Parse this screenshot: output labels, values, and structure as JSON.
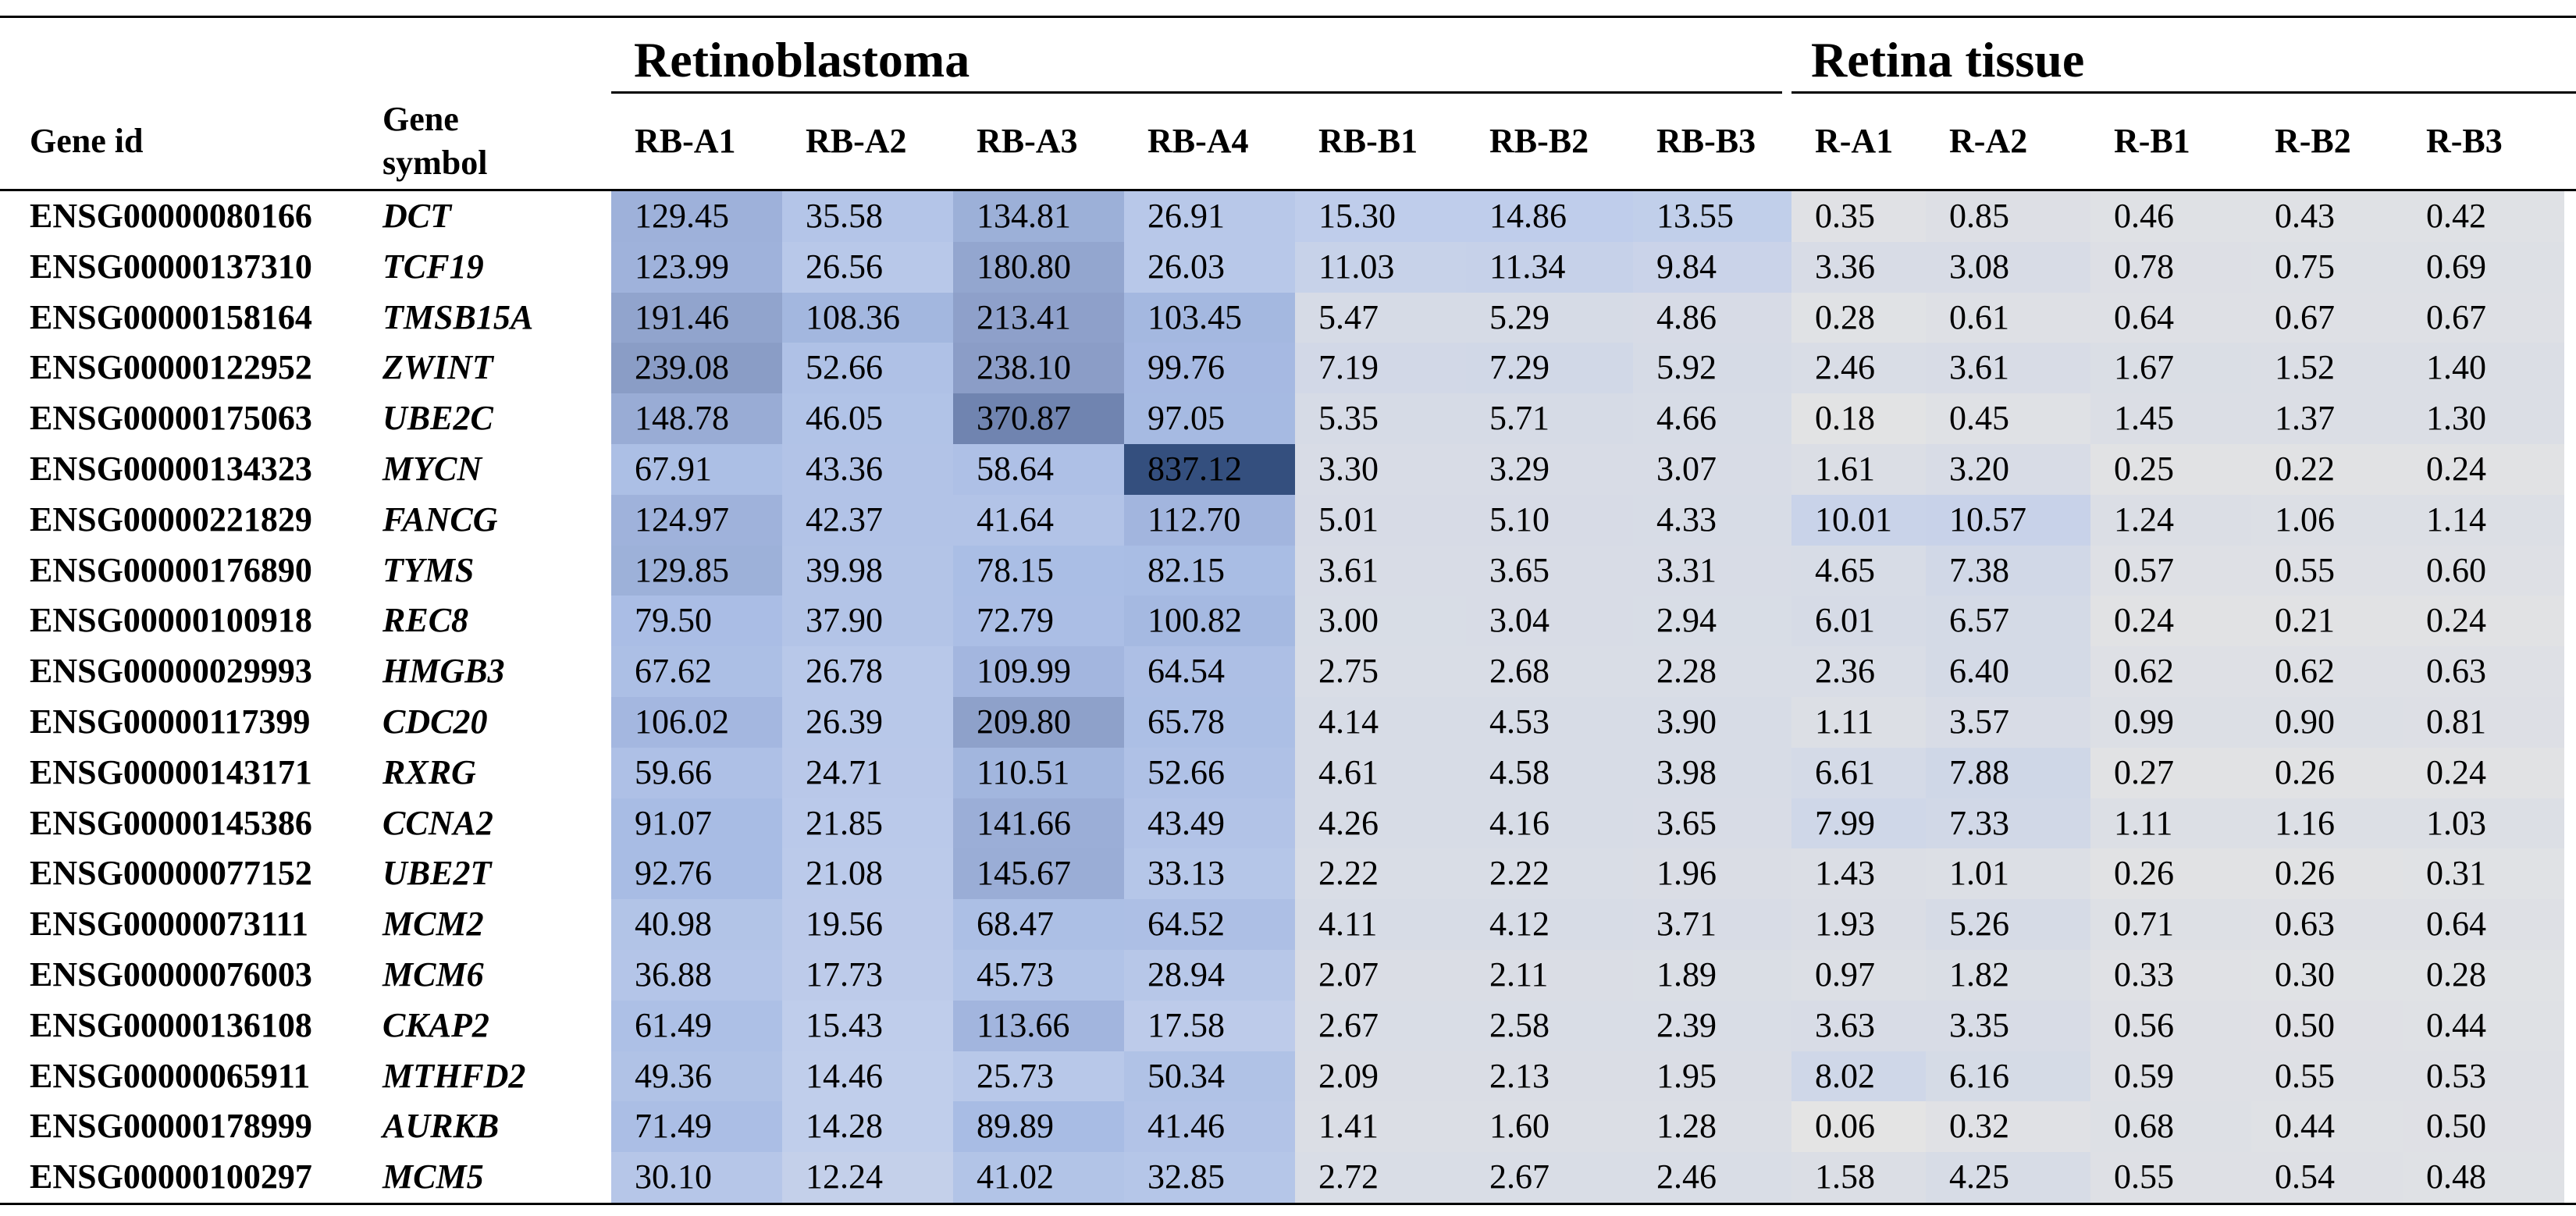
{
  "header": {
    "groups": [
      "Retinoblastoma",
      "Retina tissue"
    ],
    "columns": [
      "Gene id",
      "Gene symbol",
      "RB-A1",
      "RB-A2",
      "RB-A3",
      "RB-A4",
      "RB-B1",
      "RB-B2",
      "RB-B3",
      "R-A1",
      "R-A2",
      "R-B1",
      "R-B2",
      "R-B3"
    ]
  },
  "table": {
    "rows": [
      [
        "ENSG00000080166",
        "DCT",
        "129.45",
        "35.58",
        "134.81",
        "26.91",
        "15.30",
        "14.86",
        "13.55",
        "0.35",
        "0.85",
        "0.46",
        "0.43",
        "0.42"
      ],
      [
        "ENSG00000137310",
        "TCF19",
        "123.99",
        "26.56",
        "180.80",
        "26.03",
        "11.03",
        "11.34",
        "9.84",
        "3.36",
        "3.08",
        "0.78",
        "0.75",
        "0.69"
      ],
      [
        "ENSG00000158164",
        "TMSB15A",
        "191.46",
        "108.36",
        "213.41",
        "103.45",
        "5.47",
        "5.29",
        "4.86",
        "0.28",
        "0.61",
        "0.64",
        "0.67",
        "0.67"
      ],
      [
        "ENSG00000122952",
        "ZWINT",
        "239.08",
        "52.66",
        "238.10",
        "99.76",
        "7.19",
        "7.29",
        "5.92",
        "2.46",
        "3.61",
        "1.67",
        "1.52",
        "1.40"
      ],
      [
        "ENSG00000175063",
        "UBE2C",
        "148.78",
        "46.05",
        "370.87",
        "97.05",
        "5.35",
        "5.71",
        "4.66",
        "0.18",
        "0.45",
        "1.45",
        "1.37",
        "1.30"
      ],
      [
        "ENSG00000134323",
        "MYCN",
        "67.91",
        "43.36",
        "58.64",
        "837.12",
        "3.30",
        "3.29",
        "3.07",
        "1.61",
        "3.20",
        "0.25",
        "0.22",
        "0.24"
      ],
      [
        "ENSG00000221829",
        "FANCG",
        "124.97",
        "42.37",
        "41.64",
        "112.70",
        "5.01",
        "5.10",
        "4.33",
        "10.01",
        "10.57",
        "1.24",
        "1.06",
        "1.14"
      ],
      [
        "ENSG00000176890",
        "TYMS",
        "129.85",
        "39.98",
        "78.15",
        "82.15",
        "3.61",
        "3.65",
        "3.31",
        "4.65",
        "7.38",
        "0.57",
        "0.55",
        "0.60"
      ],
      [
        "ENSG00000100918",
        "REC8",
        "79.50",
        "37.90",
        "72.79",
        "100.82",
        "3.00",
        "3.04",
        "2.94",
        "6.01",
        "6.57",
        "0.24",
        "0.21",
        "0.24"
      ],
      [
        "ENSG00000029993",
        "HMGB3",
        "67.62",
        "26.78",
        "109.99",
        "64.54",
        "2.75",
        "2.68",
        "2.28",
        "2.36",
        "6.40",
        "0.62",
        "0.62",
        "0.63"
      ],
      [
        "ENSG00000117399",
        "CDC20",
        "106.02",
        "26.39",
        "209.80",
        "65.78",
        "4.14",
        "4.53",
        "3.90",
        "1.11",
        "3.57",
        "0.99",
        "0.90",
        "0.81"
      ],
      [
        "ENSG00000143171",
        "RXRG",
        "59.66",
        "24.71",
        "110.51",
        "52.66",
        "4.61",
        "4.58",
        "3.98",
        "6.61",
        "7.88",
        "0.27",
        "0.26",
        "0.24"
      ],
      [
        "ENSG00000145386",
        "CCNA2",
        "91.07",
        "21.85",
        "141.66",
        "43.49",
        "4.26",
        "4.16",
        "3.65",
        "7.99",
        "7.33",
        "1.11",
        "1.16",
        "1.03"
      ],
      [
        "ENSG00000077152",
        "UBE2T",
        "92.76",
        "21.08",
        "145.67",
        "33.13",
        "2.22",
        "2.22",
        "1.96",
        "1.43",
        "1.01",
        "0.26",
        "0.26",
        "0.31"
      ],
      [
        "ENSG00000073111",
        "MCM2",
        "40.98",
        "19.56",
        "68.47",
        "64.52",
        "4.11",
        "4.12",
        "3.71",
        "1.93",
        "5.26",
        "0.71",
        "0.63",
        "0.64"
      ],
      [
        "ENSG00000076003",
        "MCM6",
        "36.88",
        "17.73",
        "45.73",
        "28.94",
        "2.07",
        "2.11",
        "1.89",
        "0.97",
        "1.82",
        "0.33",
        "0.30",
        "0.28"
      ],
      [
        "ENSG00000136108",
        "CKAP2",
        "61.49",
        "15.43",
        "113.66",
        "17.58",
        "2.67",
        "2.58",
        "2.39",
        "3.63",
        "3.35",
        "0.56",
        "0.50",
        "0.44"
      ],
      [
        "ENSG00000065911",
        "MTHFD2",
        "49.36",
        "14.46",
        "25.73",
        "50.34",
        "2.09",
        "2.13",
        "1.95",
        "8.02",
        "6.16",
        "0.59",
        "0.55",
        "0.53"
      ],
      [
        "ENSG00000178999",
        "AURKB",
        "71.49",
        "14.28",
        "89.89",
        "41.46",
        "1.41",
        "1.60",
        "1.28",
        "0.06",
        "0.32",
        "0.68",
        "0.44",
        "0.50"
      ],
      [
        "ENSG00000100297",
        "MCM5",
        "30.10",
        "12.24",
        "41.02",
        "32.85",
        "2.72",
        "2.67",
        "2.46",
        "1.58",
        "4.25",
        "0.55",
        "0.54",
        "0.48"
      ]
    ]
  }
}
